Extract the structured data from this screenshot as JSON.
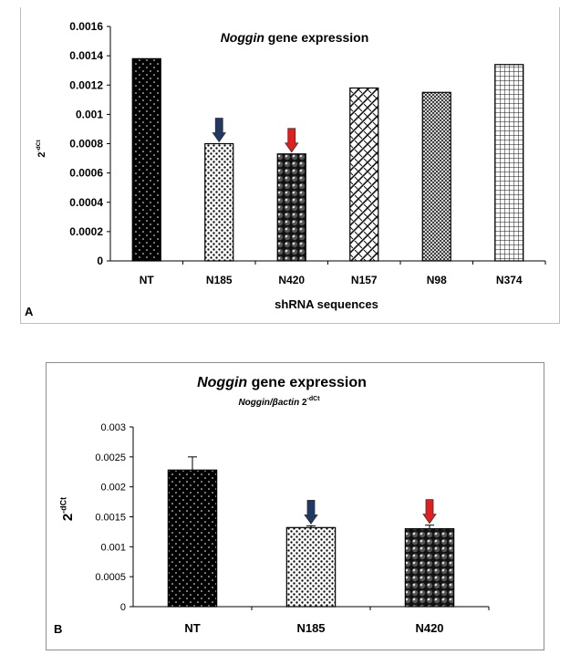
{
  "chart_data": [
    {
      "type": "bar",
      "panel_label": "A",
      "title_italic": "Noggin",
      "title_rest": " gene expression",
      "ylabel_base": "2",
      "ylabel_sup": "-dCt",
      "xlabel": "shRNA sequences",
      "categories": [
        "NT",
        "N185",
        "N420",
        "N157",
        "N98",
        "N374"
      ],
      "values": [
        0.00138,
        0.0008,
        0.00073,
        0.00118,
        0.00115,
        0.00134
      ],
      "patterns": [
        "black-dots",
        "white-dots",
        "black-spheres",
        "diagonal-weave",
        "diamond-check",
        "grid"
      ],
      "ylim": [
        0,
        0.0016
      ],
      "yticks": [
        "0",
        "0.0002",
        "0.0004",
        "0.0006",
        "0.0008",
        "0.001",
        "0.0012",
        "0.0014",
        "0.0016"
      ],
      "arrows": [
        {
          "category": "N185",
          "color": "#1f3864"
        },
        {
          "category": "N420",
          "color": "#e02020"
        }
      ],
      "grid": false
    },
    {
      "type": "bar",
      "panel_label": "B",
      "title_italic": "Noggin",
      "title_rest": " gene expression",
      "subtitle_italic": "Noggin/βactin",
      "subtitle_base": " 2",
      "subtitle_sup": "-dCt",
      "ylabel_base": "2",
      "ylabel_sup": "-dCt",
      "categories": [
        "NT",
        "N185",
        "N420"
      ],
      "values": [
        0.00228,
        0.00132,
        0.0013
      ],
      "errors": [
        0.00022,
        3e-05,
        6e-05
      ],
      "patterns": [
        "black-dots",
        "white-dots",
        "black-spheres"
      ],
      "ylim": [
        0,
        0.003
      ],
      "yticks": [
        "0",
        "0.0005",
        "0.001",
        "0.0015",
        "0.002",
        "0.0025",
        "0.003"
      ],
      "arrows": [
        {
          "category": "N185",
          "color": "#1f3864"
        },
        {
          "category": "N420",
          "color": "#e02020"
        }
      ],
      "grid": false
    }
  ]
}
